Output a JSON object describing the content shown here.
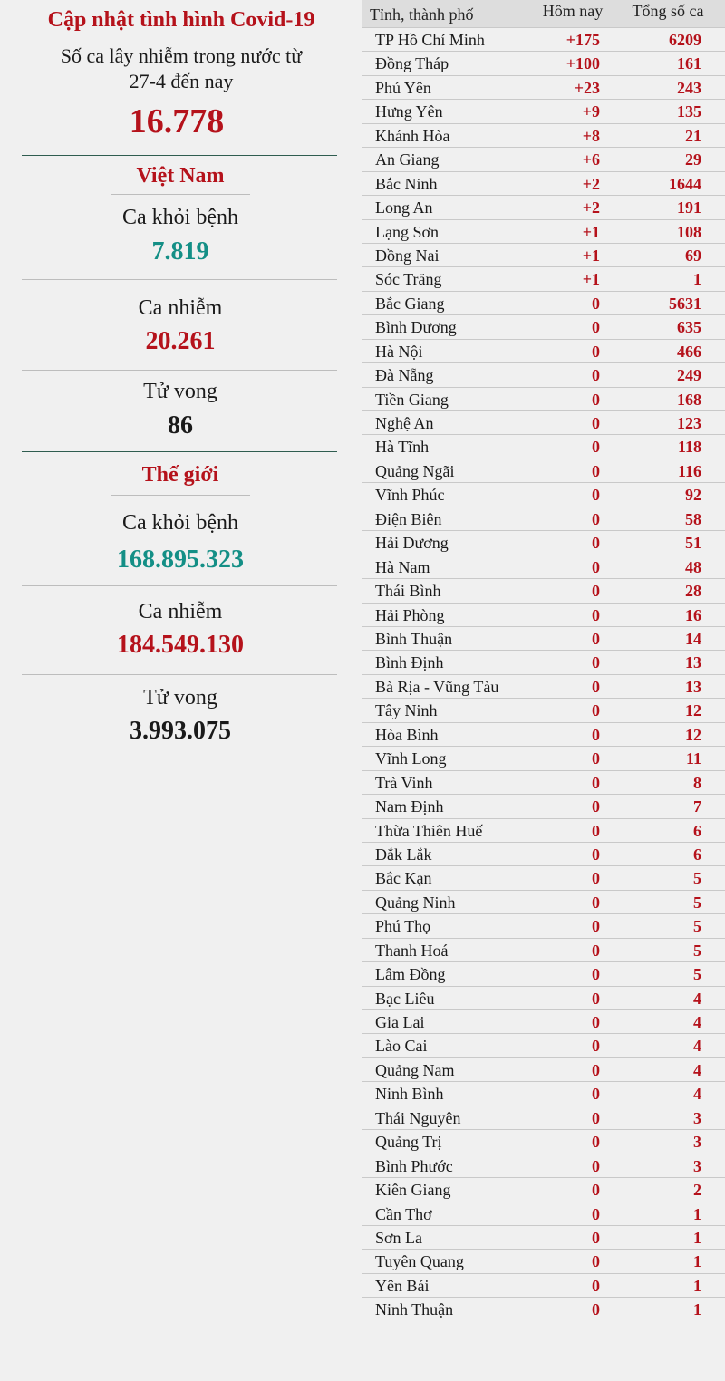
{
  "header": {
    "title": "Cập nhật tình hình Covid-19",
    "subtitle_line1": "Số ca lây nhiễm trong nước từ",
    "subtitle_line2": "27-4 đến nay",
    "domestic_total": "16.778"
  },
  "vietnam": {
    "section_title": "Việt Nam",
    "recovered_label": "Ca khỏi bệnh",
    "recovered_value": "7.819",
    "cases_label": "Ca nhiễm",
    "cases_value": "20.261",
    "deaths_label": "Tử vong",
    "deaths_value": "86"
  },
  "world": {
    "section_title": "Thế giới",
    "recovered_label": "Ca khỏi bệnh",
    "recovered_value": "168.895.323",
    "cases_label": "Ca nhiễm",
    "cases_value": "184.549.130",
    "deaths_label": "Tử vong",
    "deaths_value": "3.993.075"
  },
  "table": {
    "col_province": "Tỉnh, thành phố",
    "col_today": "Hôm nay",
    "col_total": "Tổng số ca",
    "rows": [
      {
        "province": "TP Hồ Chí Minh",
        "today": "+175",
        "total": "6209"
      },
      {
        "province": "Đồng Tháp",
        "today": "+100",
        "total": "161"
      },
      {
        "province": "Phú Yên",
        "today": "+23",
        "total": "243"
      },
      {
        "province": "Hưng Yên",
        "today": "+9",
        "total": "135"
      },
      {
        "province": "Khánh Hòa",
        "today": "+8",
        "total": "21"
      },
      {
        "province": "An Giang",
        "today": "+6",
        "total": "29"
      },
      {
        "province": "Bắc Ninh",
        "today": "+2",
        "total": "1644"
      },
      {
        "province": "Long An",
        "today": "+2",
        "total": "191"
      },
      {
        "province": "Lạng Sơn",
        "today": "+1",
        "total": "108"
      },
      {
        "province": "Đồng Nai",
        "today": "+1",
        "total": "69"
      },
      {
        "province": "Sóc Trăng",
        "today": "+1",
        "total": "1"
      },
      {
        "province": "Bắc Giang",
        "today": "0",
        "total": "5631"
      },
      {
        "province": "Bình Dương",
        "today": "0",
        "total": "635"
      },
      {
        "province": "Hà Nội",
        "today": "0",
        "total": "466"
      },
      {
        "province": "Đà Nẵng",
        "today": "0",
        "total": "249"
      },
      {
        "province": "Tiền Giang",
        "today": "0",
        "total": "168"
      },
      {
        "province": "Nghệ An",
        "today": "0",
        "total": "123"
      },
      {
        "province": "Hà Tĩnh",
        "today": "0",
        "total": "118"
      },
      {
        "province": "Quảng Ngãi",
        "today": "0",
        "total": "116"
      },
      {
        "province": "Vĩnh Phúc",
        "today": "0",
        "total": "92"
      },
      {
        "province": "Điện Biên",
        "today": "0",
        "total": "58"
      },
      {
        "province": "Hải Dương",
        "today": "0",
        "total": "51"
      },
      {
        "province": "Hà Nam",
        "today": "0",
        "total": "48"
      },
      {
        "province": "Thái Bình",
        "today": "0",
        "total": "28"
      },
      {
        "province": "Hải Phòng",
        "today": "0",
        "total": "16"
      },
      {
        "province": "Bình Thuận",
        "today": "0",
        "total": "14"
      },
      {
        "province": "Bình Định",
        "today": "0",
        "total": "13"
      },
      {
        "province": "Bà Rịa - Vũng Tàu",
        "today": "0",
        "total": "13"
      },
      {
        "province": "Tây Ninh",
        "today": "0",
        "total": "12"
      },
      {
        "province": "Hòa Bình",
        "today": "0",
        "total": "12"
      },
      {
        "province": "Vĩnh Long",
        "today": "0",
        "total": "11"
      },
      {
        "province": "Trà Vinh",
        "today": "0",
        "total": "8"
      },
      {
        "province": "Nam Định",
        "today": "0",
        "total": "7"
      },
      {
        "province": "Thừa Thiên Huế",
        "today": "0",
        "total": "6"
      },
      {
        "province": "Đắk Lắk",
        "today": "0",
        "total": "6"
      },
      {
        "province": "Bắc Kạn",
        "today": "0",
        "total": "5"
      },
      {
        "province": "Quảng Ninh",
        "today": "0",
        "total": "5"
      },
      {
        "province": "Phú Thọ",
        "today": "0",
        "total": "5"
      },
      {
        "province": "Thanh Hoá",
        "today": "0",
        "total": "5"
      },
      {
        "province": "Lâm Đồng",
        "today": "0",
        "total": "5"
      },
      {
        "province": "Bạc Liêu",
        "today": "0",
        "total": "4"
      },
      {
        "province": "Gia Lai",
        "today": "0",
        "total": "4"
      },
      {
        "province": "Lào Cai",
        "today": "0",
        "total": "4"
      },
      {
        "province": "Quảng Nam",
        "today": "0",
        "total": "4"
      },
      {
        "province": "Ninh Bình",
        "today": "0",
        "total": "4"
      },
      {
        "province": "Thái Nguyên",
        "today": "0",
        "total": "3"
      },
      {
        "province": "Quảng Trị",
        "today": "0",
        "total": "3"
      },
      {
        "province": "Bình Phước",
        "today": "0",
        "total": "3"
      },
      {
        "province": "Kiên Giang",
        "today": "0",
        "total": "2"
      },
      {
        "province": "Cần Thơ",
        "today": "0",
        "total": "1"
      },
      {
        "province": "Sơn La",
        "today": "0",
        "total": "1"
      },
      {
        "province": "Tuyên Quang",
        "today": "0",
        "total": "1"
      },
      {
        "province": "Yên Bái",
        "today": "0",
        "total": "1"
      },
      {
        "province": "Ninh Thuận",
        "today": "0",
        "total": "1"
      }
    ]
  }
}
